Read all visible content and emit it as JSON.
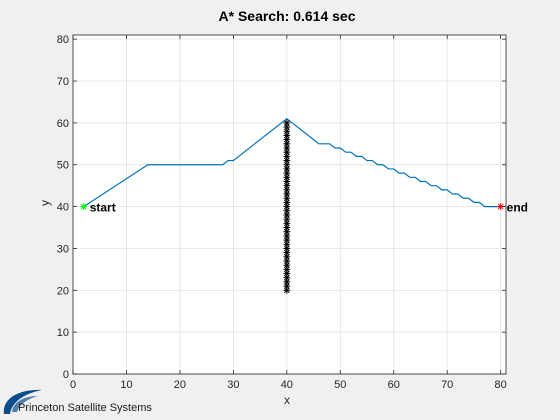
{
  "figure": {
    "logo_text": "Princeton Satellite Systems",
    "colors": {
      "background": "#f0f0f0",
      "axes_bg": "#ffffff",
      "path": "#0072bd",
      "start": "#00ff00",
      "end": "#ff0000",
      "obstacle": "#000000",
      "grid": "#dfdfdf",
      "logo": "#0b4d8c"
    }
  },
  "chart_data": {
    "type": "line",
    "title": "A* Search: 0.614 sec",
    "xlabel": "x",
    "ylabel": "y",
    "xlim": [
      0,
      81
    ],
    "ylim": [
      0,
      81
    ],
    "xticks": [
      0,
      10,
      20,
      30,
      40,
      50,
      60,
      70,
      80
    ],
    "yticks": [
      0,
      10,
      20,
      30,
      40,
      50,
      60,
      70,
      80
    ],
    "grid": true,
    "series": [
      {
        "kind": "path",
        "x": [
          2,
          14,
          28,
          29,
          30,
          40,
          42,
          43,
          44,
          45,
          46,
          47,
          48,
          49,
          50,
          51,
          52,
          53,
          54,
          55,
          56,
          57,
          58,
          59,
          60,
          61,
          62,
          63,
          64,
          65,
          66,
          67,
          68,
          69,
          70,
          71,
          72,
          73,
          74,
          75,
          76,
          77,
          78,
          79,
          80
        ],
        "y": [
          40,
          50,
          50,
          51,
          51,
          61,
          59,
          58,
          57,
          56,
          55,
          55,
          55,
          54,
          54,
          53,
          53,
          52,
          52,
          51,
          51,
          50,
          50,
          49,
          49,
          48,
          48,
          47,
          47,
          46,
          46,
          45,
          45,
          44,
          44,
          43,
          43,
          42,
          42,
          41,
          41,
          40,
          40,
          40,
          40
        ]
      },
      {
        "kind": "obstacle",
        "marker": "*",
        "x": [
          40,
          40,
          40,
          40,
          40,
          40,
          40,
          40,
          40,
          40,
          40,
          40,
          40,
          40,
          40,
          40,
          40,
          40,
          40,
          40,
          40,
          40,
          40,
          40,
          40,
          40,
          40,
          40,
          40,
          40,
          40,
          40,
          40,
          40,
          40,
          40,
          40,
          40,
          40,
          40,
          40
        ],
        "y": [
          20,
          21,
          22,
          23,
          24,
          25,
          26,
          27,
          28,
          29,
          30,
          31,
          32,
          33,
          34,
          35,
          36,
          37,
          38,
          39,
          40,
          41,
          42,
          43,
          44,
          45,
          46,
          47,
          48,
          49,
          50,
          51,
          52,
          53,
          54,
          55,
          56,
          57,
          58,
          59,
          60
        ]
      },
      {
        "kind": "start",
        "marker": "*",
        "x": [
          2
        ],
        "y": [
          40
        ]
      },
      {
        "kind": "end",
        "marker": "*",
        "x": [
          80
        ],
        "y": [
          40
        ]
      }
    ],
    "annotations": [
      {
        "text": "start",
        "x": 2,
        "y": 40
      },
      {
        "text": "end",
        "x": 80,
        "y": 40
      }
    ]
  }
}
